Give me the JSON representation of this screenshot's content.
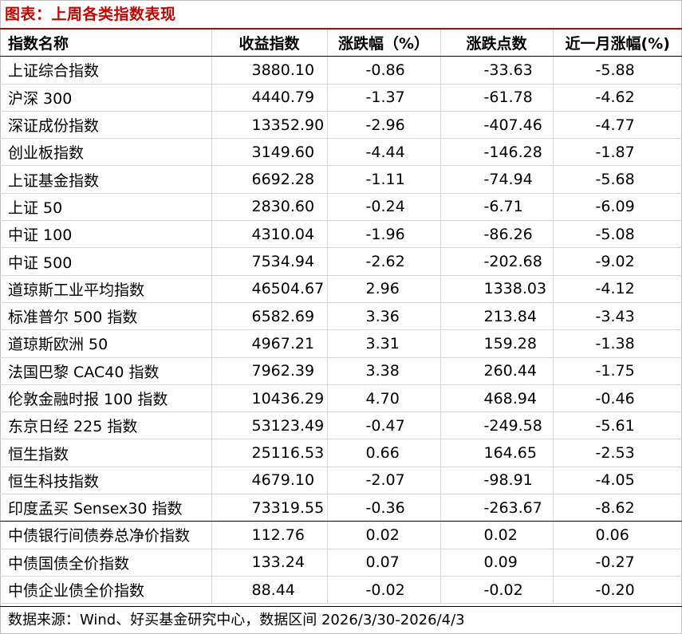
{
  "title": "图表：上周各类指数表现",
  "headers": {
    "name": "指数名称",
    "close": "收益指数",
    "change_pct": "涨跌幅（%）",
    "change_pts": "涨跌点数",
    "month_pct": "近一月涨幅(%)"
  },
  "rows": [
    {
      "name": "上证综合指数",
      "close": "3880.10",
      "change_pct": "-0.86",
      "change_pts": "-33.63",
      "month_pct": "-5.88"
    },
    {
      "name": "沪深 300",
      "close": "4440.79",
      "change_pct": "-1.37",
      "change_pts": "-61.78",
      "month_pct": "-4.62"
    },
    {
      "name": "深证成份指数",
      "close": "13352.90",
      "change_pct": "-2.96",
      "change_pts": "-407.46",
      "month_pct": "-4.77"
    },
    {
      "name": "创业板指数",
      "close": "3149.60",
      "change_pct": "-4.44",
      "change_pts": "-146.28",
      "month_pct": "-1.87"
    },
    {
      "name": "上证基金指数",
      "close": "6692.28",
      "change_pct": "-1.11",
      "change_pts": "-74.94",
      "month_pct": "-5.68"
    },
    {
      "name": "上证 50",
      "close": "2830.60",
      "change_pct": "-0.24",
      "change_pts": "-6.71",
      "month_pct": "-6.09"
    },
    {
      "name": "中证 100",
      "close": "4310.04",
      "change_pct": "-1.96",
      "change_pts": "-86.26",
      "month_pct": "-5.08"
    },
    {
      "name": "中证 500",
      "close": "7534.94",
      "change_pct": "-2.62",
      "change_pts": "-202.68",
      "month_pct": "-9.02"
    },
    {
      "name": "道琼斯工业平均指数",
      "close": "46504.67",
      "change_pct": "2.96",
      "change_pts": "1338.03",
      "month_pct": "-4.12"
    },
    {
      "name": "标准普尔 500 指数",
      "close": "6582.69",
      "change_pct": "3.36",
      "change_pts": "213.84",
      "month_pct": "-3.43"
    },
    {
      "name": "道琼斯欧洲 50",
      "close": "4967.21",
      "change_pct": "3.31",
      "change_pts": "159.28",
      "month_pct": "-1.38"
    },
    {
      "name": "法国巴黎 CAC40 指数",
      "close": "7962.39",
      "change_pct": "3.38",
      "change_pts": "260.44",
      "month_pct": "-1.75"
    },
    {
      "name": "伦敦金融时报 100 指数",
      "close": "10436.29",
      "change_pct": "4.70",
      "change_pts": "468.94",
      "month_pct": "-0.46"
    },
    {
      "name": "东京日经 225 指数",
      "close": "53123.49",
      "change_pct": "-0.47",
      "change_pts": "-249.58",
      "month_pct": "-5.61"
    },
    {
      "name": "恒生指数",
      "close": "25116.53",
      "change_pct": "0.66",
      "change_pts": "164.65",
      "month_pct": "-2.53"
    },
    {
      "name": "恒生科技指数",
      "close": "4679.10",
      "change_pct": "-2.07",
      "change_pts": "-98.91",
      "month_pct": "-4.05"
    },
    {
      "name": "印度孟买 Sensex30 指数",
      "close": "73319.55",
      "change_pct": "-0.36",
      "change_pts": "-263.67",
      "month_pct": "-8.62"
    },
    {
      "name": "中债银行间债券总净价指数",
      "close": "112.76",
      "change_pct": "0.02",
      "change_pts": "0.02",
      "month_pct": "0.06"
    },
    {
      "name": "中债国债全价指数",
      "close": "133.24",
      "change_pct": "0.07",
      "change_pts": "0.09",
      "month_pct": "-0.27"
    },
    {
      "name": "中债企业债全价指数",
      "close": "88.44",
      "change_pct": "-0.02",
      "change_pts": "-0.02",
      "month_pct": "-0.20"
    }
  ],
  "footer": "数据来源：Wind、好买基金研究中心，数据区间 2026/3/30-2026/4/3",
  "watermark": "好买基金研究",
  "colors": {
    "title": "#c00000",
    "rule": "#c00000",
    "grid": "#d9d9d9",
    "text": "#000000"
  }
}
